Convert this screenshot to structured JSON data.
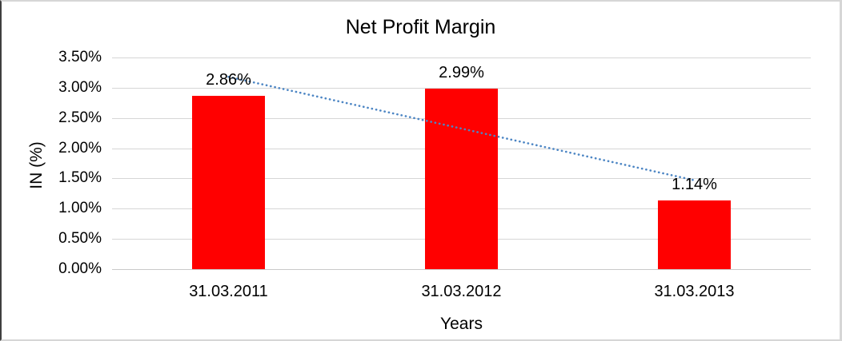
{
  "chart_data": {
    "type": "bar",
    "title": "Net Profit Margin",
    "xlabel": "Years",
    "ylabel": "IN (%)",
    "categories": [
      "31.03.2011",
      "31.03.2012",
      "31.03.2013"
    ],
    "values": [
      2.86,
      2.99,
      1.14
    ],
    "data_labels": [
      "2.86%",
      "2.99%",
      "1.14%"
    ],
    "ytick_values": [
      0,
      0.5,
      1,
      1.5,
      2,
      2.5,
      3,
      3.5
    ],
    "ytick_labels": [
      "0.00%",
      "0.50%",
      "1.00%",
      "1.50%",
      "2.00%",
      "2.50%",
      "3.00%",
      "3.50%"
    ],
    "ylim": [
      0,
      3.5
    ],
    "grid": true,
    "legend": "none",
    "bar_color": "#ff0000",
    "trendline": {
      "type": "linear",
      "style": "dotted",
      "color": "#4d86c4",
      "start_value": 3.18,
      "end_value": 1.47
    }
  }
}
